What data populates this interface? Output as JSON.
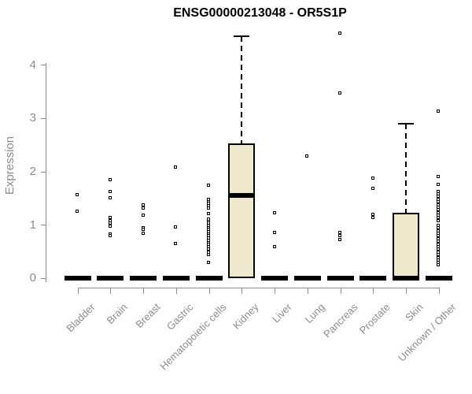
{
  "header": {
    "title": "ENSG00000213048 - OR5S1P"
  },
  "chart_data": {
    "type": "boxplot",
    "title": "ENSG00000213048 - OR5S1P",
    "xlabel": "",
    "ylabel": "Expression",
    "ylim": [
      0,
      4.65
    ],
    "y_ticks": [
      0,
      1,
      2,
      3,
      4
    ],
    "grid": false,
    "legend": "none",
    "axis_color": "#8c8c8c",
    "box_fill": "#EEE8CD",
    "box_border": "#000000",
    "point_style": "open-square",
    "categories": [
      "Bladder",
      "Brain",
      "Breast",
      "Gastric",
      "Hematopoietic cells",
      "Kidney",
      "Liver",
      "Lung",
      "Pancreas",
      "Prostate",
      "Skin",
      "Unknown / Other"
    ],
    "series": [
      {
        "category": "Bladder",
        "median": 0,
        "q1": 0,
        "q3": 0,
        "whisker_low": 0,
        "whisker_high": 0,
        "points": [
          1.55,
          1.24
        ]
      },
      {
        "category": "Brain",
        "median": 0,
        "q1": 0,
        "q3": 0,
        "whisker_low": 0,
        "whisker_high": 0,
        "points": [
          1.83,
          1.62,
          1.49,
          1.12,
          1.07,
          1.02,
          0.97,
          0.82,
          0.79
        ]
      },
      {
        "category": "Breast",
        "median": 0,
        "q1": 0,
        "q3": 0,
        "whisker_low": 0,
        "whisker_high": 0,
        "points": [
          1.37,
          1.3,
          1.17,
          0.94,
          0.9,
          0.83
        ]
      },
      {
        "category": "Gastric",
        "median": 0,
        "q1": 0,
        "q3": 0,
        "whisker_low": 0,
        "whisker_high": 0,
        "points": [
          2.07,
          0.95,
          0.64
        ]
      },
      {
        "category": "Hematopoietic cells",
        "median": 0,
        "q1": 0,
        "q3": 0,
        "whisker_low": 0,
        "whisker_high": 0,
        "points": [
          1.73,
          1.47,
          1.43,
          1.39,
          1.35,
          1.31,
          1.2,
          1.1,
          1.06,
          1.02,
          0.98,
          0.94,
          0.9,
          0.86,
          0.82,
          0.78,
          0.74,
          0.7,
          0.66,
          0.63,
          0.58,
          0.53,
          0.48,
          0.43,
          0.29
        ]
      },
      {
        "category": "Kidney",
        "median": 1.55,
        "q1": 0,
        "q3": 2.53,
        "whisker_low": 0,
        "whisker_high": 4.53,
        "points": []
      },
      {
        "category": "Liver",
        "median": 0,
        "q1": 0,
        "q3": 0,
        "whisker_low": 0,
        "whisker_high": 0,
        "points": [
          1.21,
          0.84,
          0.58
        ]
      },
      {
        "category": "Lung",
        "median": 0,
        "q1": 0,
        "q3": 0,
        "whisker_low": 0,
        "whisker_high": 0,
        "points": [
          2.28
        ]
      },
      {
        "category": "Pancreas",
        "median": 0,
        "q1": 0,
        "q3": 0,
        "whisker_low": 0,
        "whisker_high": 0,
        "points": [
          4.59,
          3.47,
          0.84,
          0.78,
          0.72
        ]
      },
      {
        "category": "Prostate",
        "median": 0,
        "q1": 0,
        "q3": 0,
        "whisker_low": 0,
        "whisker_high": 0,
        "points": [
          1.87,
          1.68,
          1.19,
          1.13
        ]
      },
      {
        "category": "Skin",
        "median": 0,
        "q1": 0,
        "q3": 1.23,
        "whisker_low": 0,
        "whisker_high": 2.9,
        "points": []
      },
      {
        "category": "Unknown / Other",
        "median": 0,
        "q1": 0,
        "q3": 0,
        "whisker_low": 0,
        "whisker_high": 0,
        "points": [
          3.13,
          1.9,
          1.75,
          1.62,
          1.57,
          1.52,
          1.47,
          1.42,
          1.37,
          1.32,
          1.27,
          1.22,
          1.17,
          1.12,
          1.07,
          0.98,
          0.93,
          0.88,
          0.83,
          0.78,
          0.73,
          0.68,
          0.63,
          0.58,
          0.53,
          0.48,
          0.43,
          0.38,
          0.33,
          0.28,
          0.24
        ]
      }
    ]
  }
}
